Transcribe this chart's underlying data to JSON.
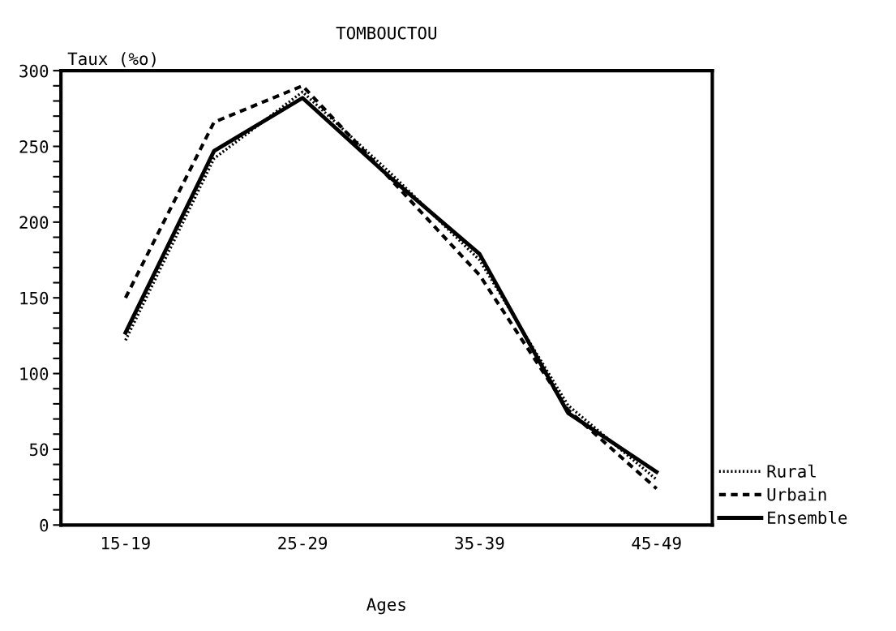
{
  "chart_data": {
    "type": "line",
    "title": "TOMBOUCTOU",
    "xlabel": "Ages",
    "ylabel": "Taux (%o)",
    "categories": [
      "15-19",
      null,
      "25-29",
      null,
      "35-39",
      null,
      "45-49"
    ],
    "series": [
      {
        "name": "Rural",
        "color": "#000000",
        "line_style": "dotted",
        "values": [
          122,
          242,
          286,
          232,
          175,
          79,
          30
        ]
      },
      {
        "name": "Urbain",
        "color": "#000000",
        "line_style": "dashed",
        "values": [
          150,
          266,
          290,
          228,
          165,
          76,
          24
        ]
      },
      {
        "name": "Ensemble",
        "color": "#000000",
        "line_style": "solid",
        "values": [
          127,
          247,
          282,
          229,
          179,
          74,
          35
        ]
      }
    ],
    "ylim": [
      0,
      300
    ],
    "yticks": [
      0,
      {
        "value": 10,
        "label": null
      },
      {
        "value": 20,
        "label": null
      },
      {
        "value": 30,
        "label": null
      },
      {
        "value": 40,
        "label": null
      },
      50,
      {
        "value": 60,
        "label": null
      },
      {
        "value": 70,
        "label": null
      },
      {
        "value": 80,
        "label": null
      },
      {
        "value": 90,
        "label": null
      },
      100,
      {
        "value": 110,
        "label": null
      },
      {
        "value": 120,
        "label": null
      },
      {
        "value": 130,
        "label": null
      },
      {
        "value": 140,
        "label": null
      },
      150,
      {
        "value": 160,
        "label": null
      },
      {
        "value": 170,
        "label": null
      },
      {
        "value": 180,
        "label": null
      },
      {
        "value": 190,
        "label": null
      },
      200,
      {
        "value": 210,
        "label": null
      },
      {
        "value": 220,
        "label": null
      },
      {
        "value": 230,
        "label": null
      },
      {
        "value": 240,
        "label": null
      },
      250,
      {
        "value": 260,
        "label": null
      },
      {
        "value": 270,
        "label": null
      },
      {
        "value": 280,
        "label": null
      },
      {
        "value": 290,
        "label": null
      },
      300
    ],
    "grid": false,
    "legend": "bottom right",
    "marker": "none"
  }
}
